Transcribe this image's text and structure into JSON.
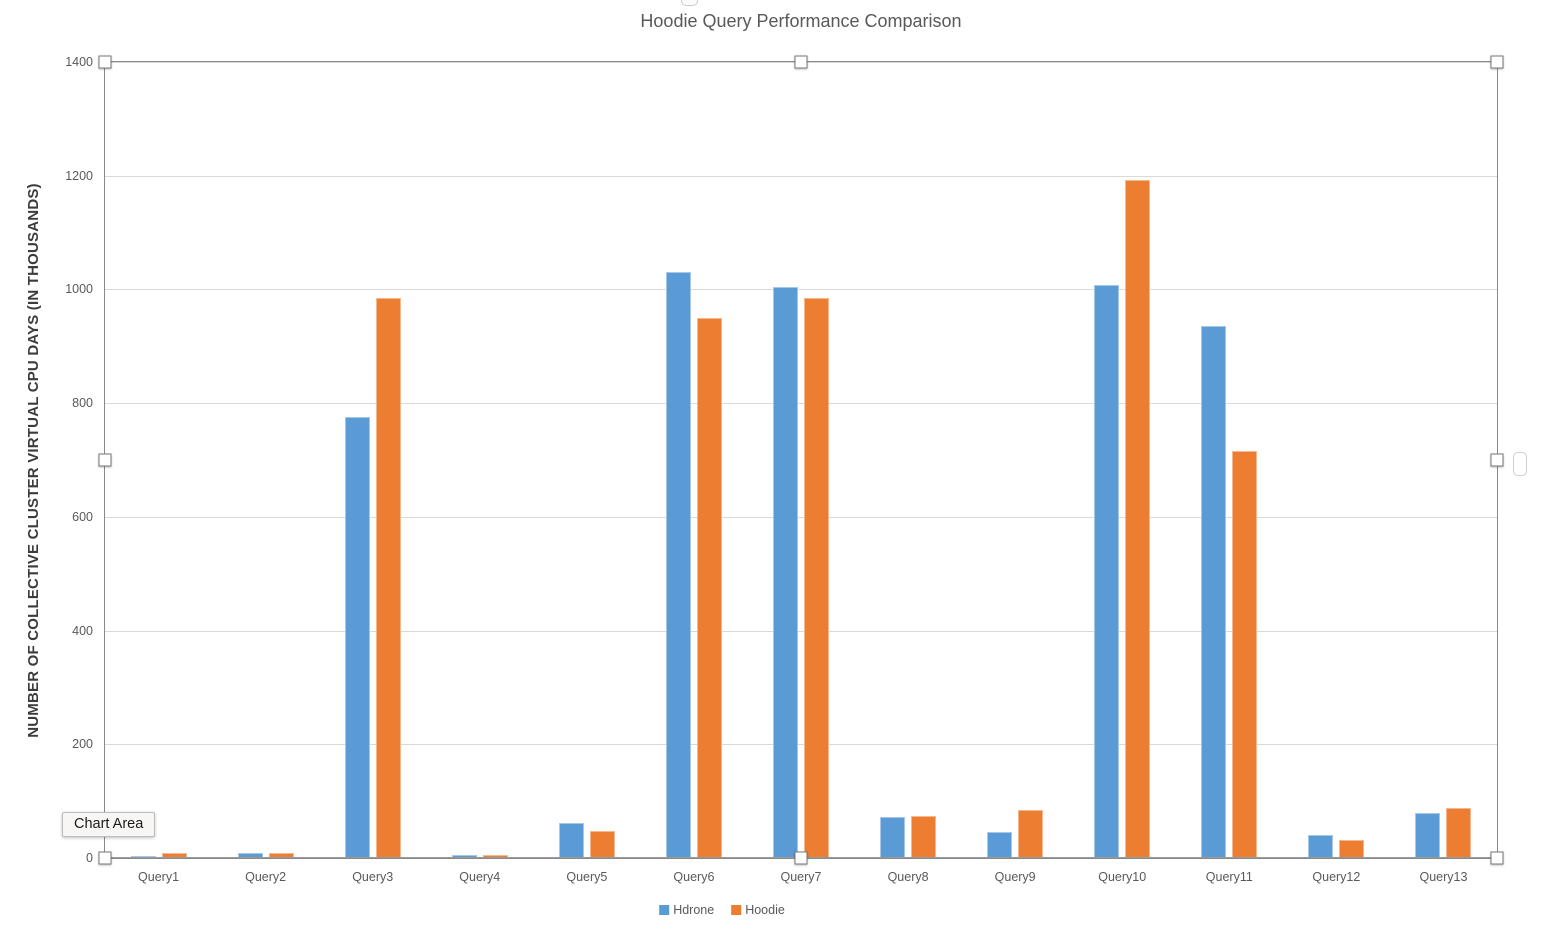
{
  "chart_data": {
    "type": "bar",
    "title": "Hoodie Query Performance Comparison",
    "xlabel": "",
    "ylabel": "NUMBER OF COLLECTIVE CLUSTER VIRTUAL CPU DAYS (IN THOUSANDS)",
    "categories": [
      "Query1",
      "Query2",
      "Query3",
      "Query4",
      "Query5",
      "Query6",
      "Query7",
      "Query8",
      "Query9",
      "Query10",
      "Query11",
      "Query12",
      "Query13"
    ],
    "series": [
      {
        "name": "Hdrone",
        "color": "#5B9BD5",
        "values": [
          4,
          9,
          775,
          5,
          62,
          1030,
          1005,
          72,
          46,
          1008,
          935,
          40,
          79
        ]
      },
      {
        "name": "Hoodie",
        "color": "#ED7D31",
        "values": [
          9,
          9,
          985,
          5,
          48,
          950,
          985,
          73,
          84,
          1192,
          715,
          32,
          88
        ]
      }
    ],
    "ylim": [
      0,
      1400
    ],
    "yticks": [
      0,
      200,
      400,
      600,
      800,
      1000,
      1200,
      1400
    ],
    "grid": true,
    "legend_position": "bottom-center"
  },
  "tooltip": {
    "label": "Chart Area"
  },
  "colors": {
    "series_hdrone": "#5B9BD5",
    "series_hoodie": "#ED7D31",
    "gridline": "#D9D9D9",
    "axis_line": "#9B9B9B",
    "selection_frame": "#898989",
    "text": "#595959"
  }
}
